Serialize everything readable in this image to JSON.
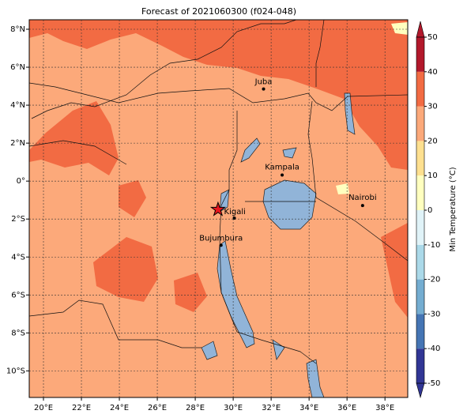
{
  "map": {
    "title": "Forecast of 2021060300 (f024-048)",
    "lonlim": [
      19.25,
      39.2
    ],
    "latlim": [
      -11.4,
      8.5
    ],
    "xticks": [
      {
        "value": 20,
        "label": "20°E"
      },
      {
        "value": 22,
        "label": "22°E"
      },
      {
        "value": 24,
        "label": "24°E"
      },
      {
        "value": 26,
        "label": "26°E"
      },
      {
        "value": 28,
        "label": "28°E"
      },
      {
        "value": 30,
        "label": "30°E"
      },
      {
        "value": 32,
        "label": "32°E"
      },
      {
        "value": 34,
        "label": "34°E"
      },
      {
        "value": 36,
        "label": "36°E"
      },
      {
        "value": 38,
        "label": "38°E"
      }
    ],
    "yticks": [
      {
        "value": 8,
        "label": "8°N"
      },
      {
        "value": 6,
        "label": "6°N"
      },
      {
        "value": 4,
        "label": "4°N"
      },
      {
        "value": 2,
        "label": "2°N"
      },
      {
        "value": 0,
        "label": "0°"
      },
      {
        "value": -2,
        "label": "2°S"
      },
      {
        "value": -4,
        "label": "4°S"
      },
      {
        "value": -6,
        "label": "6°S"
      },
      {
        "value": -8,
        "label": "8°S"
      },
      {
        "value": -10,
        "label": "10°S"
      }
    ],
    "cities": [
      {
        "name": "Juba",
        "lon": 31.6,
        "lat": 4.85
      },
      {
        "name": "Kampala",
        "lon": 32.58,
        "lat": 0.32
      },
      {
        "name": "Nairobi",
        "lon": 36.82,
        "lat": -1.29
      },
      {
        "name": "Kigali",
        "lon": 30.06,
        "lat": -1.95
      },
      {
        "name": "Bujumbura",
        "lon": 29.36,
        "lat": -3.38
      }
    ],
    "marker": {
      "lon": 29.2,
      "lat": -1.5
    },
    "colorbar": {
      "label": "Min Temperature (°C)",
      "lim": [
        -50,
        50
      ],
      "ticks": [
        -50,
        -40,
        -30,
        -20,
        -10,
        0,
        10,
        20,
        30,
        40,
        50
      ],
      "colors": [
        "#313695",
        "#4575b4",
        "#74add1",
        "#abd9e9",
        "#e0f3f8",
        "#ffffbf",
        "#fee090",
        "#fca97a",
        "#f26b43",
        "#b2182b"
      ]
    }
  }
}
